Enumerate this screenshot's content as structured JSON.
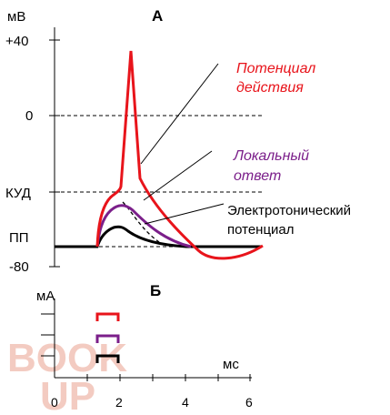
{
  "top_panel": {
    "label": "А",
    "y_unit": "мВ",
    "y_levels": {
      "plus40": "+40",
      "zero": "0",
      "threshold": "КУД",
      "resting": "ПП",
      "minus80": "-80"
    },
    "annotations": {
      "action_potential_line1": "Потенциал",
      "action_potential_line2": "действия",
      "local_response_line1": "Локальный",
      "local_response_line2": "ответ",
      "electrotonic_line1": "Электротонический",
      "electrotonic_line2": "потенциал"
    }
  },
  "bottom_panel": {
    "label": "Б",
    "y_unit": "мА",
    "x_unit": "мс",
    "x_ticks": [
      "0",
      "2",
      "4",
      "6"
    ]
  },
  "watermark": {
    "line1": "BOOK",
    "line2": "UP"
  },
  "colors": {
    "action_potential": "#e8141b",
    "local_response": "#7b1f8a",
    "electrotonic": "#000000",
    "watermark": "#f3c9bf"
  }
}
